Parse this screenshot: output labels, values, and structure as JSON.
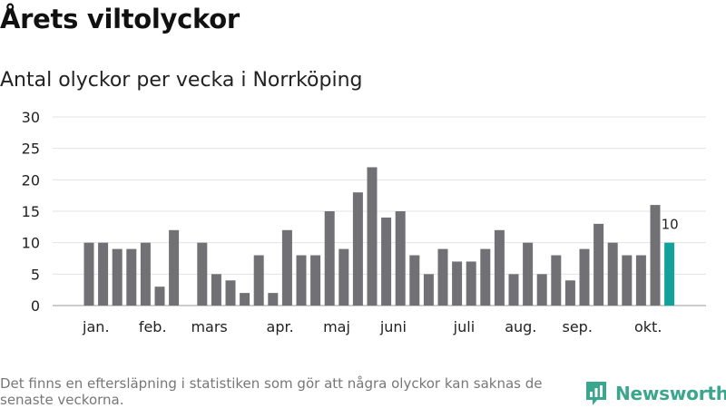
{
  "title": "Årets viltolyckor",
  "chart_data": {
    "type": "bar",
    "title": "Antal olyckor per vecka i Norrköping",
    "xlabel": "",
    "ylabel": "",
    "ylim": [
      0,
      30
    ],
    "yticks": [
      "0",
      "5",
      "10",
      "15",
      "20",
      "25",
      "30"
    ],
    "weeks": [
      1,
      2,
      3,
      4,
      5,
      6,
      7,
      8,
      9,
      10,
      11,
      12,
      13,
      14,
      15,
      16,
      17,
      18,
      19,
      20,
      21,
      22,
      23,
      24,
      25,
      26,
      27,
      28,
      29,
      30,
      31,
      32,
      33,
      34,
      35,
      36,
      37,
      38,
      39,
      40,
      41,
      42
    ],
    "values": [
      10,
      10,
      9,
      9,
      10,
      3,
      12,
      0,
      10,
      5,
      4,
      2,
      8,
      2,
      12,
      8,
      8,
      15,
      9,
      18,
      22,
      14,
      15,
      8,
      5,
      9,
      7,
      7,
      9,
      12,
      5,
      10,
      5,
      8,
      4,
      9,
      13,
      10,
      8,
      8,
      16,
      10
    ],
    "month_labels": [
      {
        "label": "jan.",
        "week": 1.5
      },
      {
        "label": "feb.",
        "week": 5.5
      },
      {
        "label": "mars",
        "week": 9.5
      },
      {
        "label": "apr.",
        "week": 14.5
      },
      {
        "label": "maj",
        "week": 18.5
      },
      {
        "label": "juni",
        "week": 22.5
      },
      {
        "label": "juli",
        "week": 27.5
      },
      {
        "label": "aug.",
        "week": 31.5
      },
      {
        "label": "sep.",
        "week": 35.5
      },
      {
        "label": "okt.",
        "week": 40.5
      }
    ],
    "highlight_week": 42,
    "highlight_label": "10",
    "bar_color": "#717074",
    "highlight_color": "#13a19b",
    "grid": true
  },
  "footnote": "Det finns en eftersläpning i statistiken som gör att några olyckor kan saknas de senaste veckorna.",
  "brand": {
    "name": "Newsworthy",
    "icon": "newsworthy-logo-icon",
    "color": "#3aa68d"
  }
}
